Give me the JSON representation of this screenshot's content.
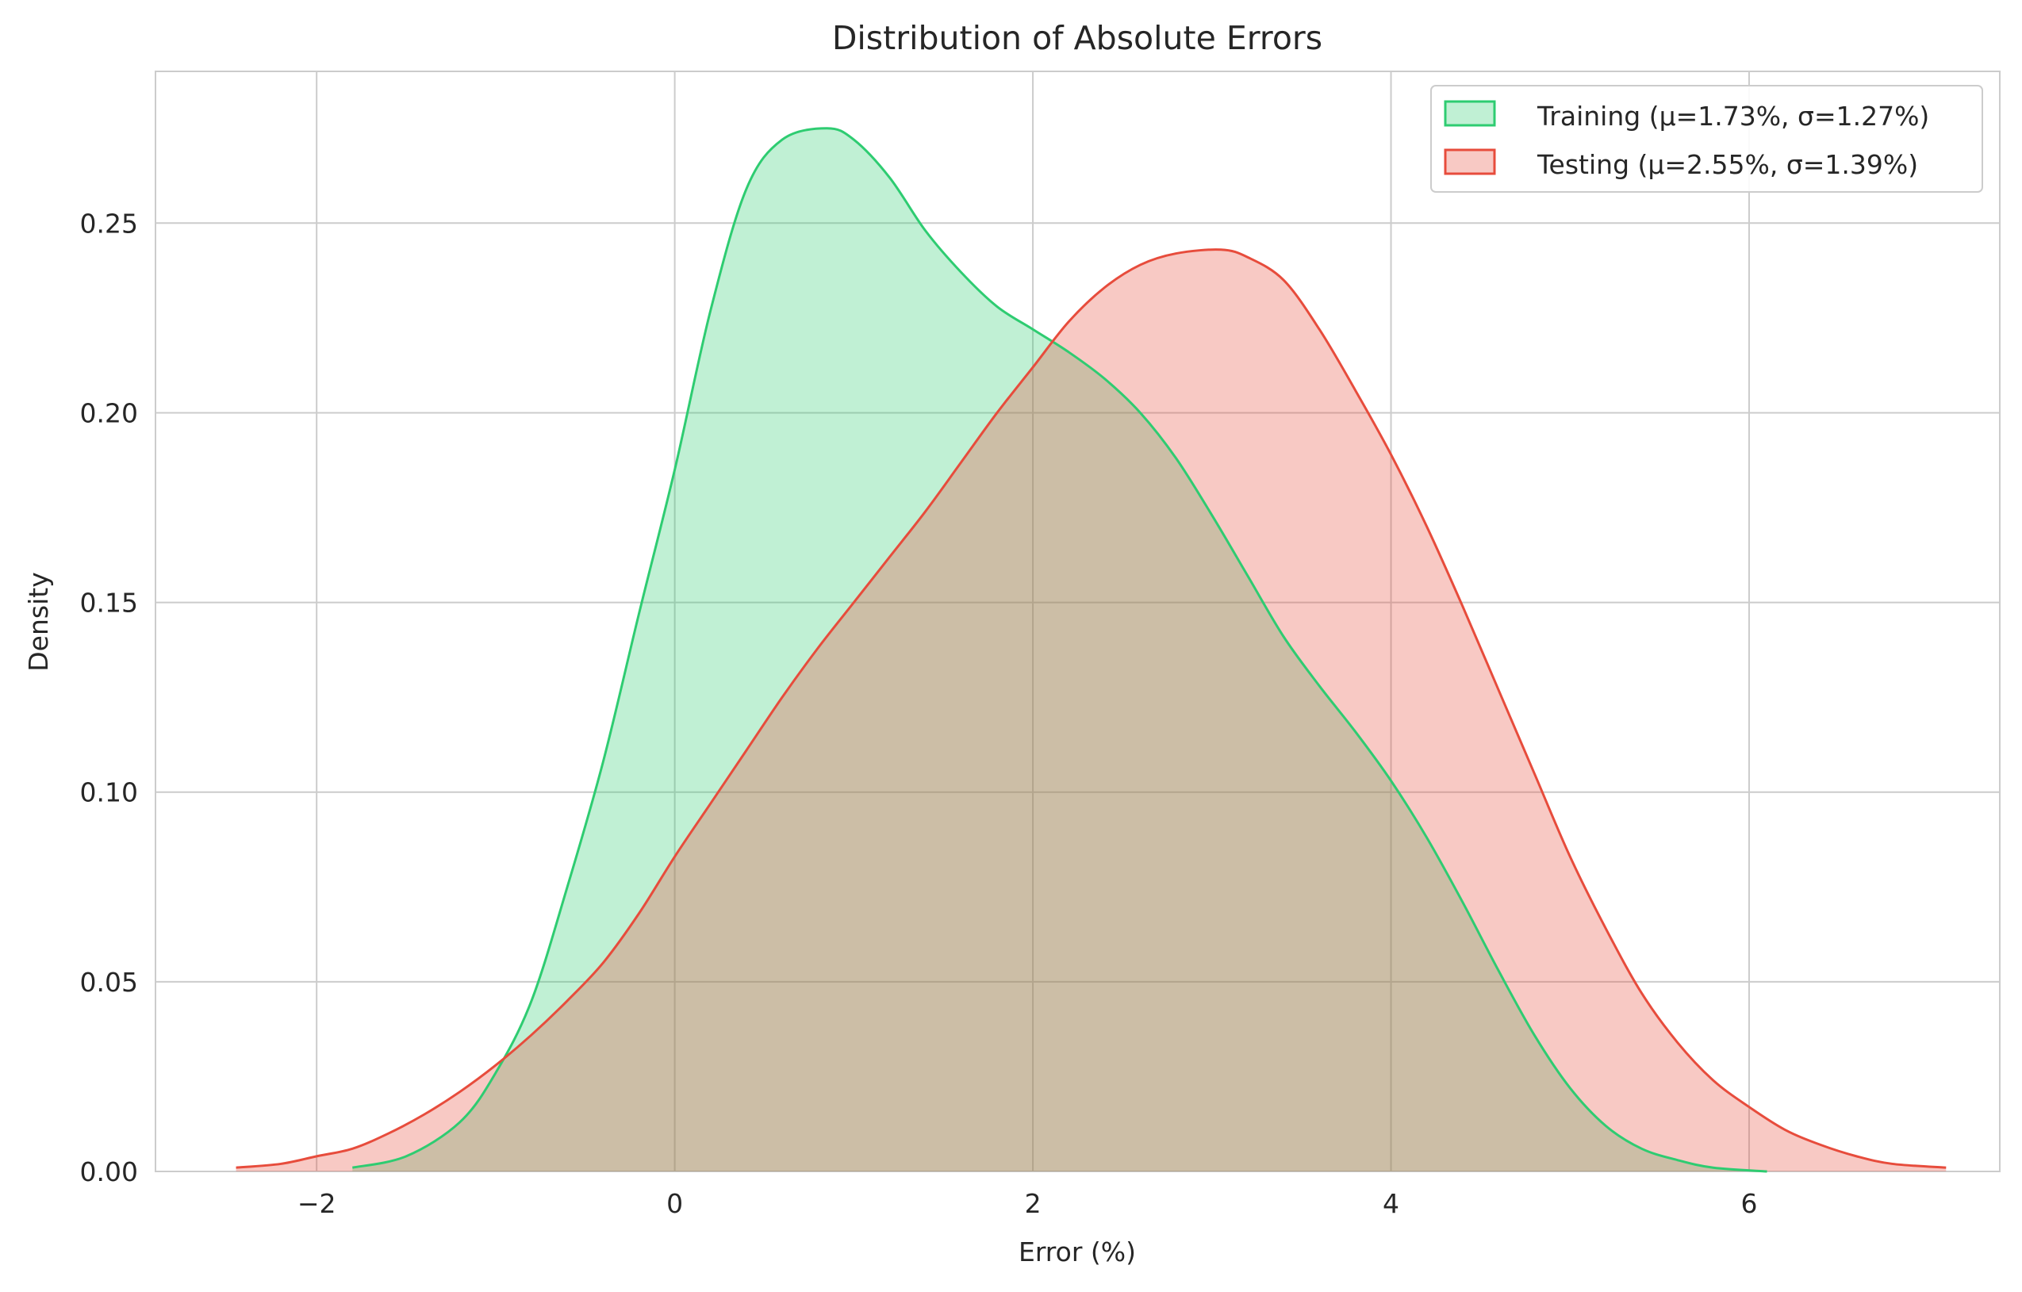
{
  "chart_data": {
    "type": "area",
    "title": "Distribution of Absolute Errors",
    "xlabel": "Error (%)",
    "ylabel": "Density",
    "xlim": [
      -2.9,
      7.4
    ],
    "ylim": [
      0.0,
      0.29
    ],
    "xticks": [
      -2,
      0,
      2,
      4,
      6
    ],
    "xtick_labels": [
      "−2",
      "0",
      "2",
      "4",
      "6"
    ],
    "yticks": [
      0.0,
      0.05,
      0.1,
      0.15,
      0.2,
      0.25
    ],
    "ytick_labels": [
      "0.00",
      "0.05",
      "0.10",
      "0.15",
      "0.20",
      "0.25"
    ],
    "grid": true,
    "legend_position": "top-right",
    "series": [
      {
        "name": "Training (μ=1.73%, σ=1.27%)",
        "line_color": "#2ecc71",
        "fill_color": "#2ecc71",
        "fill_opacity": 0.3,
        "x": [
          -1.8,
          -1.5,
          -1.2,
          -1.0,
          -0.8,
          -0.6,
          -0.4,
          -0.2,
          0.0,
          0.2,
          0.4,
          0.6,
          0.85,
          1.0,
          1.2,
          1.4,
          1.6,
          1.8,
          2.0,
          2.2,
          2.4,
          2.6,
          2.8,
          3.0,
          3.2,
          3.4,
          3.6,
          3.8,
          4.0,
          4.2,
          4.4,
          4.6,
          4.8,
          5.0,
          5.2,
          5.4,
          5.6,
          5.8,
          6.1
        ],
        "y": [
          0.001,
          0.004,
          0.013,
          0.026,
          0.045,
          0.075,
          0.108,
          0.147,
          0.185,
          0.227,
          0.259,
          0.272,
          0.275,
          0.272,
          0.262,
          0.248,
          0.237,
          0.228,
          0.222,
          0.216,
          0.209,
          0.2,
          0.188,
          0.173,
          0.157,
          0.141,
          0.128,
          0.116,
          0.103,
          0.088,
          0.071,
          0.053,
          0.036,
          0.022,
          0.012,
          0.006,
          0.003,
          0.001,
          0.0
        ]
      },
      {
        "name": "Testing (μ=2.55%, σ=1.39%)",
        "line_color": "#e74c3c",
        "fill_color": "#e74c3c",
        "fill_opacity": 0.3,
        "x": [
          -2.45,
          -2.2,
          -2.0,
          -1.8,
          -1.6,
          -1.4,
          -1.2,
          -1.0,
          -0.8,
          -0.6,
          -0.4,
          -0.2,
          0.0,
          0.2,
          0.4,
          0.6,
          0.8,
          1.0,
          1.2,
          1.4,
          1.6,
          1.8,
          2.0,
          2.2,
          2.4,
          2.6,
          2.8,
          3.05,
          3.2,
          3.4,
          3.6,
          3.8,
          4.0,
          4.2,
          4.4,
          4.6,
          4.8,
          5.0,
          5.2,
          5.4,
          5.6,
          5.8,
          6.0,
          6.2,
          6.4,
          6.6,
          6.8,
          7.1
        ],
        "y": [
          0.001,
          0.002,
          0.004,
          0.006,
          0.01,
          0.015,
          0.021,
          0.028,
          0.036,
          0.045,
          0.055,
          0.068,
          0.083,
          0.097,
          0.111,
          0.125,
          0.138,
          0.15,
          0.162,
          0.174,
          0.187,
          0.2,
          0.212,
          0.224,
          0.233,
          0.239,
          0.242,
          0.243,
          0.241,
          0.235,
          0.222,
          0.206,
          0.189,
          0.17,
          0.149,
          0.127,
          0.105,
          0.083,
          0.064,
          0.047,
          0.034,
          0.024,
          0.017,
          0.011,
          0.007,
          0.004,
          0.002,
          0.001
        ]
      }
    ]
  }
}
